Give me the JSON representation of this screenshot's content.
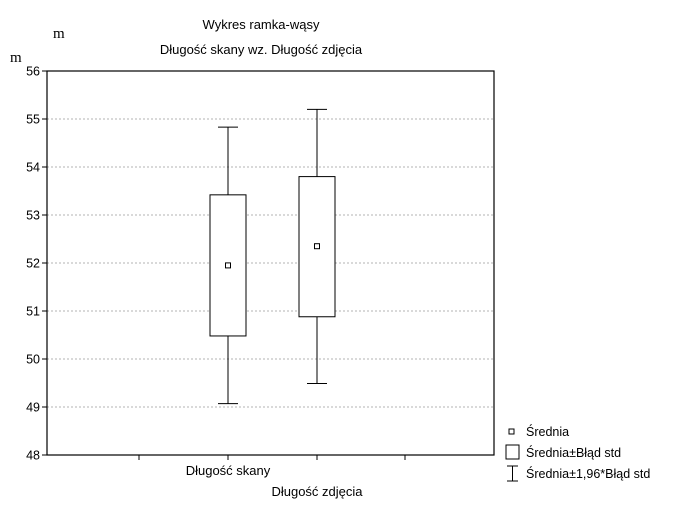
{
  "chart_data": {
    "type": "box",
    "title": "Wykres ramka-wąsy",
    "subtitle": "Długość skany wz. Długość zdjęcia",
    "ylabel_top": "m",
    "ylabel_side": "m",
    "ylim": [
      48,
      56
    ],
    "yticks": [
      48,
      49,
      50,
      51,
      52,
      53,
      54,
      55,
      56
    ],
    "grid": true,
    "categories": [
      "Długość skany",
      "Długość zdjęcia"
    ],
    "series": [
      {
        "category": "Długość skany",
        "mean": 51.95,
        "box_low": 50.48,
        "box_high": 53.42,
        "whisker_low": 49.07,
        "whisker_high": 54.83
      },
      {
        "category": "Długość zdjęcia",
        "mean": 52.35,
        "box_low": 50.88,
        "box_high": 53.8,
        "whisker_low": 49.49,
        "whisker_high": 55.2
      }
    ],
    "legend": {
      "placement": "bottom-right",
      "items": [
        "Średnia",
        "Średnia±Błąd std",
        "Średnia±1,96*Błąd std"
      ]
    }
  }
}
